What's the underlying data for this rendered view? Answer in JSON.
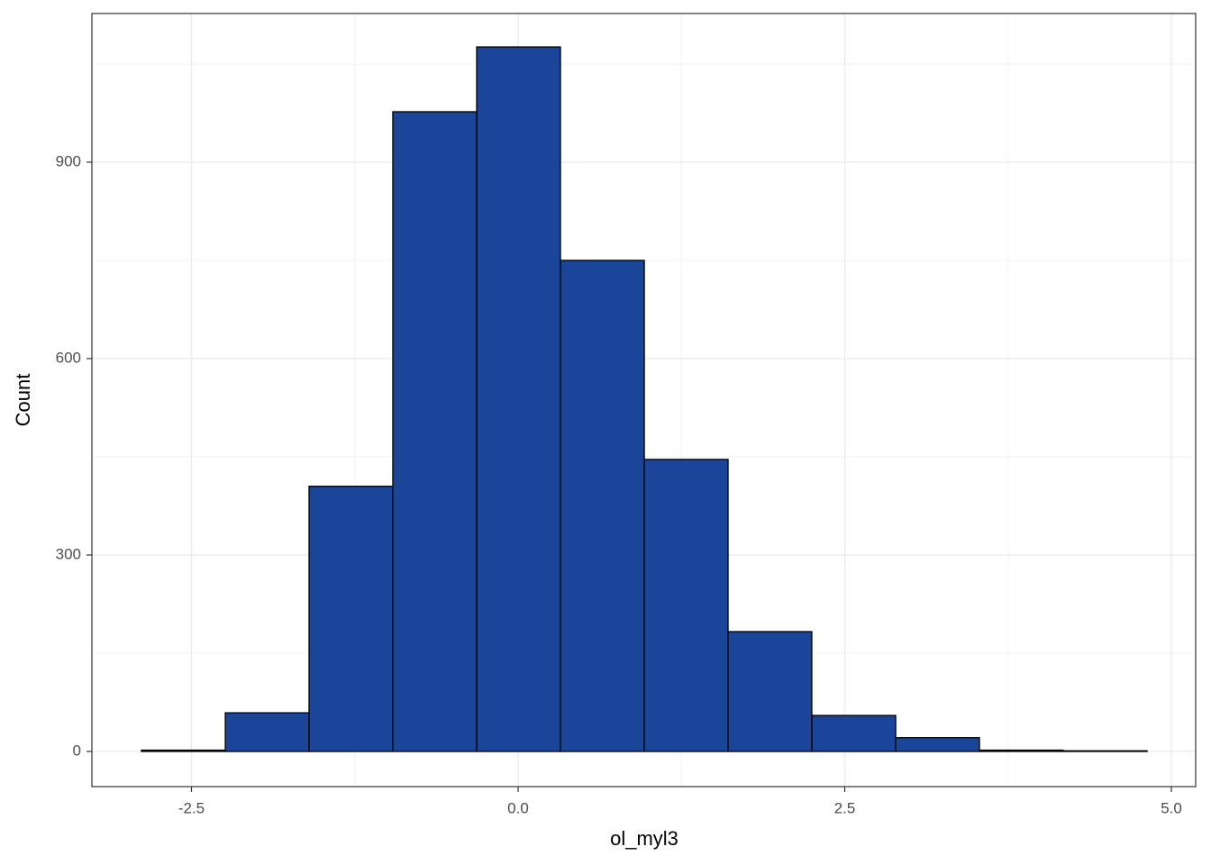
{
  "chart_data": {
    "type": "histogram",
    "x_label": "ol_myl3",
    "y_label": "Count",
    "bins": [
      -2.883,
      -2.241,
      -1.6,
      -0.959,
      -0.317,
      0.324,
      0.966,
      1.607,
      2.248,
      2.89,
      3.531,
      4.172,
      4.814
    ],
    "values": [
      2,
      59,
      405,
      977,
      1076,
      750,
      446,
      183,
      55,
      21,
      2,
      1
    ],
    "color": "#1a4599",
    "xlim": [
      -3.262,
      5.186
    ],
    "ylim": [
      -53.7,
      1127
    ],
    "xticks": [
      -2.5,
      {
        "value": 0,
        "label": "0.0"
      },
      2.5,
      {
        "value": 5,
        "label": "5.0"
      }
    ],
    "yticks": [
      0,
      300,
      600,
      900
    ],
    "grid": true
  }
}
